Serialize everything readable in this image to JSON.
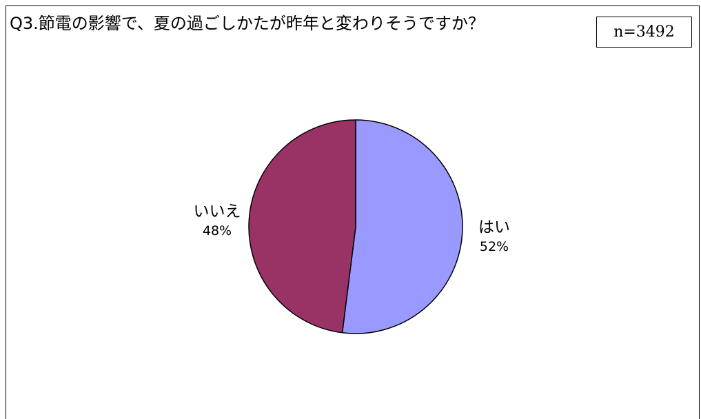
{
  "chart": {
    "title": "Q3.節電の影響で、夏の過ごしかたが昨年と変わりそうですか？",
    "n_label": "n=3492"
  },
  "chart_data": {
    "type": "pie",
    "title": "Q3.節電の影響で、夏の過ごしかたが昨年と変わりそうですか？",
    "slices": [
      {
        "name": "はい",
        "value": 52,
        "label": "52%",
        "color": "#9999ff"
      },
      {
        "name": "いいえ",
        "value": 48,
        "label": "48%",
        "color": "#993366"
      }
    ],
    "start_angle_deg": 0,
    "direction": "clockwise",
    "legend": "none"
  }
}
